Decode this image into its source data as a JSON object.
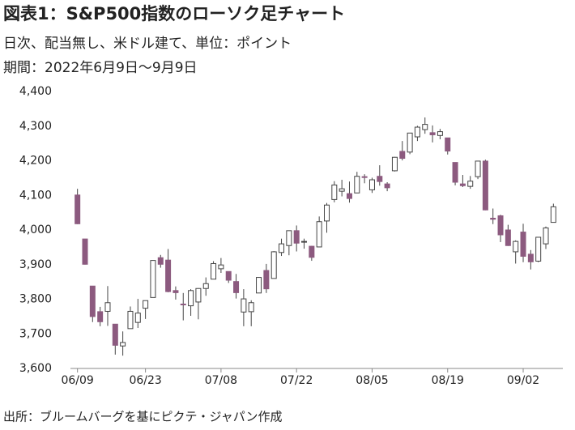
{
  "chart_data": {
    "type": "candlestick",
    "title": "図表1：S&P500指数のローソク足チャート",
    "subtitles": [
      "日次、配当無し、米ドル建て、単位：ポイント",
      "期間：2022年6月9日～9月9日"
    ],
    "source": "出所：ブルームバーグを基にピクテ・ジャパン作成",
    "categories": [
      "06/09",
      null,
      null,
      null,
      null,
      null,
      null,
      null,
      null,
      "06/23",
      null,
      null,
      null,
      null,
      null,
      null,
      null,
      null,
      null,
      "07/08",
      null,
      null,
      null,
      null,
      null,
      null,
      null,
      null,
      null,
      "07/22",
      null,
      null,
      null,
      null,
      null,
      null,
      null,
      null,
      null,
      "08/05",
      null,
      null,
      null,
      null,
      null,
      null,
      null,
      null,
      null,
      "08/19",
      null,
      null,
      null,
      null,
      null,
      null,
      null,
      null,
      null,
      "09/02",
      null,
      null,
      null,
      null
    ],
    "open": [
      4101,
      3974,
      3838,
      3764,
      3765,
      3728,
      3665,
      3715,
      3733,
      3774,
      3805,
      3920,
      3913,
      3825,
      3786,
      3781,
      3792,
      3831,
      3858,
      3888,
      3880,
      3851,
      3763,
      3764,
      3818,
      3883,
      3860,
      3935,
      3955,
      3998,
      3965,
      3953,
      3951,
      4026,
      4088,
      4112,
      4105,
      4107,
      4154,
      4116,
      4155,
      4133,
      4171,
      4227,
      4225,
      4269,
      4290,
      4281,
      4273,
      4266,
      4195,
      4133,
      4126,
      4154,
      4199,
      4034,
      4041,
      4000,
      3937,
      3994,
      3930,
      3910,
      3960,
      4022
    ],
    "high": [
      4119,
      3974,
      3838,
      3778,
      3838,
      3728,
      3707,
      3779,
      3801,
      3796,
      3913,
      3928,
      3945,
      3837,
      3818,
      3829,
      3832,
      3863,
      3910,
      3919,
      3880,
      3873,
      3829,
      3797,
      3864,
      3902,
      3939,
      3975,
      3999,
      4013,
      3975,
      3954,
      4039,
      4078,
      4141,
      4145,
      4140,
      4168,
      4161,
      4151,
      4187,
      4138,
      4211,
      4257,
      4280,
      4301,
      4325,
      4302,
      4292,
      4266,
      4195,
      4159,
      4156,
      4200,
      4203,
      4062,
      4044,
      4015,
      3970,
      4018,
      3942,
      3980,
      4010,
      4076
    ],
    "low": [
      4017,
      3900,
      3734,
      3722,
      3723,
      3640,
      3637,
      3715,
      3717,
      3743,
      3805,
      3891,
      3820,
      3799,
      3739,
      3752,
      3742,
      3810,
      3858,
      3876,
      3847,
      3802,
      3722,
      3722,
      3818,
      3818,
      3860,
      3925,
      3927,
      3938,
      3946,
      3911,
      3951,
      3992,
      4080,
      4097,
      4079,
      4107,
      4135,
      4107,
      4128,
      4112,
      4169,
      4201,
      4219,
      4257,
      4278,
      4253,
      4262,
      4218,
      4129,
      4124,
      4119,
      4147,
      4057,
      4017,
      3965,
      3954,
      3903,
      3907,
      3886,
      3907,
      3945,
      4022
    ],
    "close": [
      4018,
      3901,
      3750,
      3735,
      3790,
      3667,
      3675,
      3765,
      3760,
      3796,
      3912,
      3901,
      3822,
      3819,
      3785,
      3825,
      3831,
      3845,
      3903,
      3899,
      3855,
      3819,
      3801,
      3790,
      3863,
      3830,
      3937,
      3960,
      3998,
      3962,
      3967,
      3921,
      4024,
      4072,
      4130,
      4119,
      4091,
      4155,
      4152,
      4145,
      4140,
      4122,
      4210,
      4207,
      4280,
      4297,
      4305,
      4275,
      4284,
      4228,
      4138,
      4128,
      4141,
      4199,
      4058,
      4031,
      3986,
      3955,
      3967,
      3924,
      3908,
      3979,
      4006,
      4067
    ],
    "up_color": "#ffffff",
    "down_color": "#8c5a7f",
    "ylim": [
      3600,
      4400
    ],
    "yticks": [
      {
        "value": 3600,
        "label": "3,600"
      },
      {
        "value": 3700,
        "label": "3,700"
      },
      {
        "value": 3800,
        "label": "3,800"
      },
      {
        "value": 3900,
        "label": "3,900"
      },
      {
        "value": 4000,
        "label": "4,000"
      },
      {
        "value": 4100,
        "label": "4,100"
      },
      {
        "value": 4200,
        "label": "4,200"
      },
      {
        "value": 4300,
        "label": "4,300"
      },
      {
        "value": 4400,
        "label": "4,400"
      }
    ],
    "grid": false
  }
}
